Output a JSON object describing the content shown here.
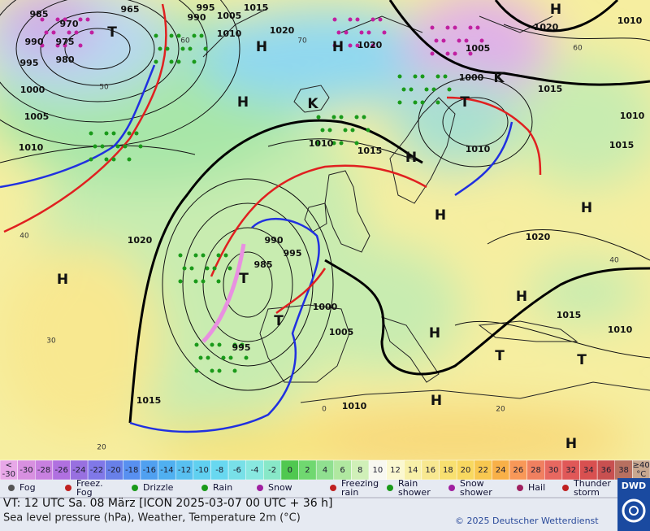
{
  "map": {
    "pressure_labels": [
      "985",
      "970",
      "965",
      "990",
      "975",
      "995",
      "980",
      "1000",
      "1005",
      "1010",
      "990",
      "995",
      "1005",
      "1015",
      "1010",
      "1020",
      "1020",
      "1005",
      "1020",
      "1010",
      "1000",
      "1015",
      "1010",
      "1015",
      "1010",
      "1015",
      "1010",
      "1020",
      "990",
      "995",
      "985",
      "1000",
      "1005",
      "995",
      "1010",
      "1015",
      "1020",
      "1015",
      "1010"
    ],
    "centers": [
      "H",
      "T",
      "H",
      "H",
      "H",
      "H",
      "H",
      "H",
      "H",
      "T",
      "T",
      "H",
      "H",
      "T",
      "T",
      "H",
      "H",
      "T",
      "K",
      "K"
    ],
    "graticule_labels": [
      "60",
      "50",
      "40",
      "30",
      "20",
      "70",
      "60",
      "40",
      "20",
      "0"
    ]
  },
  "color_scale": [
    {
      "lines": [
        "<",
        "-30"
      ],
      "color": "#e8a8e8"
    },
    {
      "lines": [
        "-30"
      ],
      "color": "#d890e0"
    },
    {
      "lines": [
        "-28"
      ],
      "color": "#c880e0"
    },
    {
      "lines": [
        "-26"
      ],
      "color": "#b070e0"
    },
    {
      "lines": [
        "-24"
      ],
      "color": "#9870e0"
    },
    {
      "lines": [
        "-22"
      ],
      "color": "#8078e8"
    },
    {
      "lines": [
        "-20"
      ],
      "color": "#6880e8"
    },
    {
      "lines": [
        "-18"
      ],
      "color": "#5890f0"
    },
    {
      "lines": [
        "-16"
      ],
      "color": "#50a0f0"
    },
    {
      "lines": [
        "-14"
      ],
      "color": "#50b0f0"
    },
    {
      "lines": [
        "-12"
      ],
      "color": "#58c0f0"
    },
    {
      "lines": [
        "-10"
      ],
      "color": "#60d0f0"
    },
    {
      "lines": [
        "-8"
      ],
      "color": "#68d8f0"
    },
    {
      "lines": [
        "-6"
      ],
      "color": "#78e0e8"
    },
    {
      "lines": [
        "-4"
      ],
      "color": "#88e8e0"
    },
    {
      "lines": [
        "-2"
      ],
      "color": "#88e8c8"
    },
    {
      "lines": [
        "0"
      ],
      "color": "#50c850"
    },
    {
      "lines": [
        "2"
      ],
      "color": "#70d870"
    },
    {
      "lines": [
        "4"
      ],
      "color": "#90e090"
    },
    {
      "lines": [
        "6"
      ],
      "color": "#b0e8a0"
    },
    {
      "lines": [
        "8"
      ],
      "color": "#d0f0b8"
    },
    {
      "lines": [
        "10"
      ],
      "color": "#f8f8f0"
    },
    {
      "lines": [
        "12"
      ],
      "color": "#fbf8d0"
    },
    {
      "lines": [
        "14"
      ],
      "color": "#f8f0a8"
    },
    {
      "lines": [
        "16"
      ],
      "color": "#f8e890"
    },
    {
      "lines": [
        "18"
      ],
      "color": "#f8e070"
    },
    {
      "lines": [
        "20"
      ],
      "color": "#f8d860"
    },
    {
      "lines": [
        "22"
      ],
      "color": "#f8c850"
    },
    {
      "lines": [
        "24"
      ],
      "color": "#f8b048"
    },
    {
      "lines": [
        "26"
      ],
      "color": "#f89858"
    },
    {
      "lines": [
        "28"
      ],
      "color": "#f08060"
    },
    {
      "lines": [
        "30"
      ],
      "color": "#e86860"
    },
    {
      "lines": [
        "32"
      ],
      "color": "#e05858"
    },
    {
      "lines": [
        "34"
      ],
      "color": "#d85050"
    },
    {
      "lines": [
        "36"
      ],
      "color": "#c85050"
    },
    {
      "lines": [
        "38"
      ],
      "color": "#b87060"
    },
    {
      "lines": [
        "≥40",
        "°C"
      ],
      "color": "#c8a890"
    }
  ],
  "legend": [
    {
      "lines": [
        "Fog"
      ]
    },
    {
      "lines": [
        "Freez.",
        "Fog"
      ]
    },
    {
      "lines": [
        "Drizzle"
      ]
    },
    {
      "lines": [
        "Rain"
      ]
    },
    {
      "lines": [
        "Snow"
      ]
    },
    {
      "lines": [
        "Freezing",
        "rain"
      ]
    },
    {
      "lines": [
        "Rain",
        "shower"
      ]
    },
    {
      "lines": [
        "Snow",
        "shower"
      ]
    },
    {
      "lines": [
        "Hail"
      ]
    },
    {
      "lines": [
        "Thunder",
        "storm"
      ]
    }
  ],
  "footer": {
    "valid_time": "VT: 12 UTC Sa.  08 März [ICON 2025-03-07  00 UTC + 36 h]",
    "description": "Sea level pressure (hPa), Weather, Temperature 2m (°C)",
    "copyright": "© 2025 Deutscher Wetterdienst",
    "logo": "DWD"
  }
}
